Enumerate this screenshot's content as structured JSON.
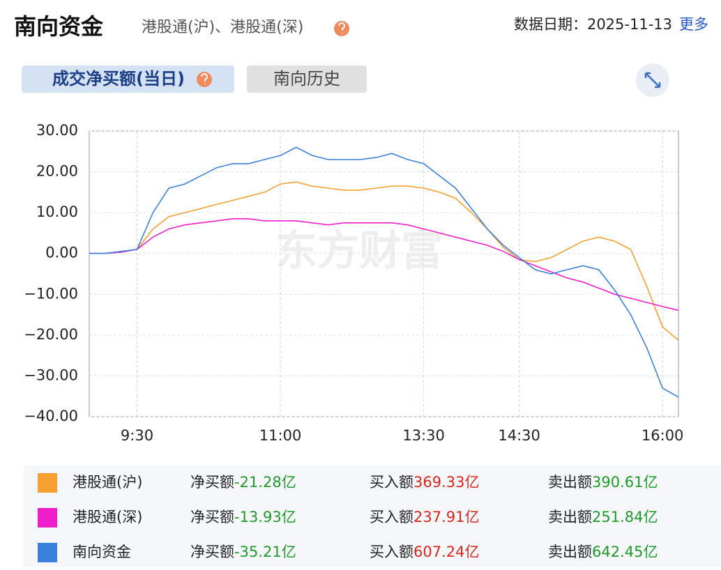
{
  "header": {
    "title": "南向资金",
    "subtitle": "港股通(沪)、港股通(深)",
    "date": "数据日期：2025-11-13",
    "more": "更多"
  },
  "tabs": [
    "成交净买额(当日)",
    "南向历史"
  ],
  "watermark": "东方财富",
  "chart_data": {
    "type": "line",
    "x": [
      0,
      10,
      20,
      30,
      40,
      50,
      60,
      70,
      80,
      90,
      100,
      110,
      120,
      130,
      140,
      150,
      160,
      170,
      180,
      190,
      200,
      210,
      220,
      230,
      240,
      250,
      260,
      270,
      280,
      290,
      300,
      310,
      320,
      330,
      340,
      350,
      360,
      370
    ],
    "xlim": [
      0,
      370
    ],
    "xticks": [
      {
        "value": 30,
        "label": "9:30"
      },
      {
        "value": 120,
        "label": "11:00"
      },
      {
        "value": 210,
        "label": "13:30"
      },
      {
        "value": 270,
        "label": "14:30"
      },
      {
        "value": 360,
        "label": "16:00"
      }
    ],
    "ylim": [
      -40,
      30
    ],
    "yticks": [
      {
        "value": 30,
        "label": "30.00"
      },
      {
        "value": 20,
        "label": "20.00"
      },
      {
        "value": 10,
        "label": "10.00"
      },
      {
        "value": 0,
        "label": "0.00"
      },
      {
        "value": -10,
        "label": "−10.00"
      },
      {
        "value": -20,
        "label": "−20.00"
      },
      {
        "value": -30,
        "label": "−30.00"
      },
      {
        "value": -40,
        "label": "−40.00"
      }
    ],
    "grid": true,
    "series": [
      {
        "name": "港股通(沪)",
        "color": "#f5a031",
        "values": [
          0,
          0,
          0.5,
          1,
          6,
          9,
          10,
          11,
          12,
          13,
          14,
          15,
          17,
          17.5,
          16.5,
          16,
          15.5,
          15.5,
          16,
          16.5,
          16.5,
          16,
          15,
          13.5,
          10,
          6,
          1.5,
          -1.5,
          -2,
          -1,
          1,
          3,
          4,
          3,
          1,
          -8,
          -18,
          -21.28
        ]
      },
      {
        "name": "港股通(深)",
        "color": "#ee1fc8",
        "values": [
          0,
          0,
          0.3,
          1,
          4,
          6,
          7,
          7.5,
          8,
          8.5,
          8.5,
          8,
          8,
          8,
          7.5,
          7,
          7.5,
          7.5,
          7.5,
          7.5,
          7,
          6,
          5,
          4,
          3,
          2,
          0.5,
          -1.5,
          -3,
          -4.5,
          -6,
          -7,
          -8.5,
          -10,
          -11,
          -12,
          -13,
          -13.93
        ]
      },
      {
        "name": "南向资金",
        "color": "#3a80dc",
        "values": [
          0,
          0,
          0.5,
          1,
          10,
          16,
          17,
          19,
          21,
          22,
          22,
          23,
          24,
          26,
          24,
          23,
          23,
          23,
          23.5,
          24.5,
          23,
          22,
          19,
          16,
          11,
          6,
          2,
          -1,
          -4,
          -5,
          -4,
          -3,
          -4,
          -9,
          -15,
          -23,
          -33,
          -35.21
        ]
      }
    ]
  },
  "summary": {
    "labels": [
      "净买额",
      "买入额",
      "卖出额"
    ],
    "rows": [
      {
        "net": "-21.28亿",
        "buy": "369.33亿",
        "sell": "390.61亿"
      },
      {
        "net": "-13.93亿",
        "buy": "237.91亿",
        "sell": "251.84亿"
      },
      {
        "net": "-35.21亿",
        "buy": "607.24亿",
        "sell": "642.45亿"
      }
    ]
  }
}
